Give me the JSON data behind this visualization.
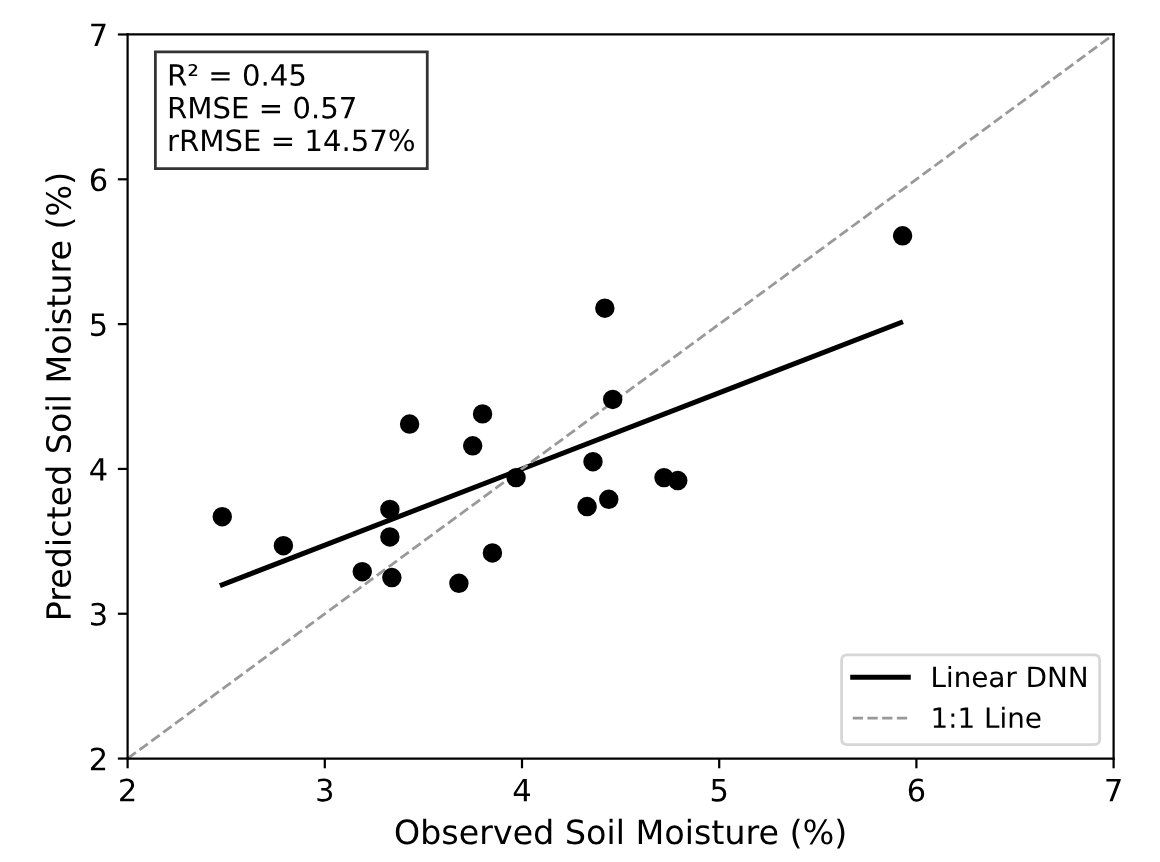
{
  "chart_data": {
    "type": "scatter",
    "xlabel": "Observed Soil Moisture (%)",
    "ylabel": "Predicted Soil Moisture (%)",
    "xlim": [
      2,
      7
    ],
    "ylim": [
      2,
      7
    ],
    "xticks": [
      2,
      3,
      4,
      5,
      6,
      7
    ],
    "yticks": [
      2,
      3,
      4,
      5,
      6,
      7
    ],
    "grid": false,
    "legend": "bottom right",
    "marker": "circle",
    "annotations": [
      "R² = 0.45\nRMSE = 0.57\nrRMSE = 14.57%"
    ],
    "series": [
      {
        "color": "#000000",
        "x": [
          2.48,
          2.79,
          3.19,
          3.33,
          3.33,
          3.34,
          3.43,
          3.68,
          3.75,
          3.8,
          3.85,
          3.97,
          4.33,
          4.36,
          4.42,
          4.44,
          4.46,
          4.72,
          4.79,
          5.93
        ],
        "values": [
          3.67,
          3.47,
          3.29,
          3.72,
          3.53,
          3.25,
          4.31,
          3.21,
          4.16,
          4.38,
          3.42,
          3.94,
          3.74,
          4.05,
          5.11,
          3.79,
          4.48,
          3.94,
          3.92,
          5.61
        ]
      },
      {
        "type": "line",
        "name": "Linear DNN",
        "color": "#000000",
        "line_style": "solid",
        "marker": "none",
        "x": [
          2.48,
          5.92
        ],
        "values": [
          3.2,
          5.01
        ]
      },
      {
        "type": "line",
        "name": "1:1 Line",
        "color": "#999999",
        "line_style": "dashed",
        "marker": "none",
        "x": [
          2,
          7
        ],
        "values": [
          2,
          7
        ]
      }
    ]
  }
}
